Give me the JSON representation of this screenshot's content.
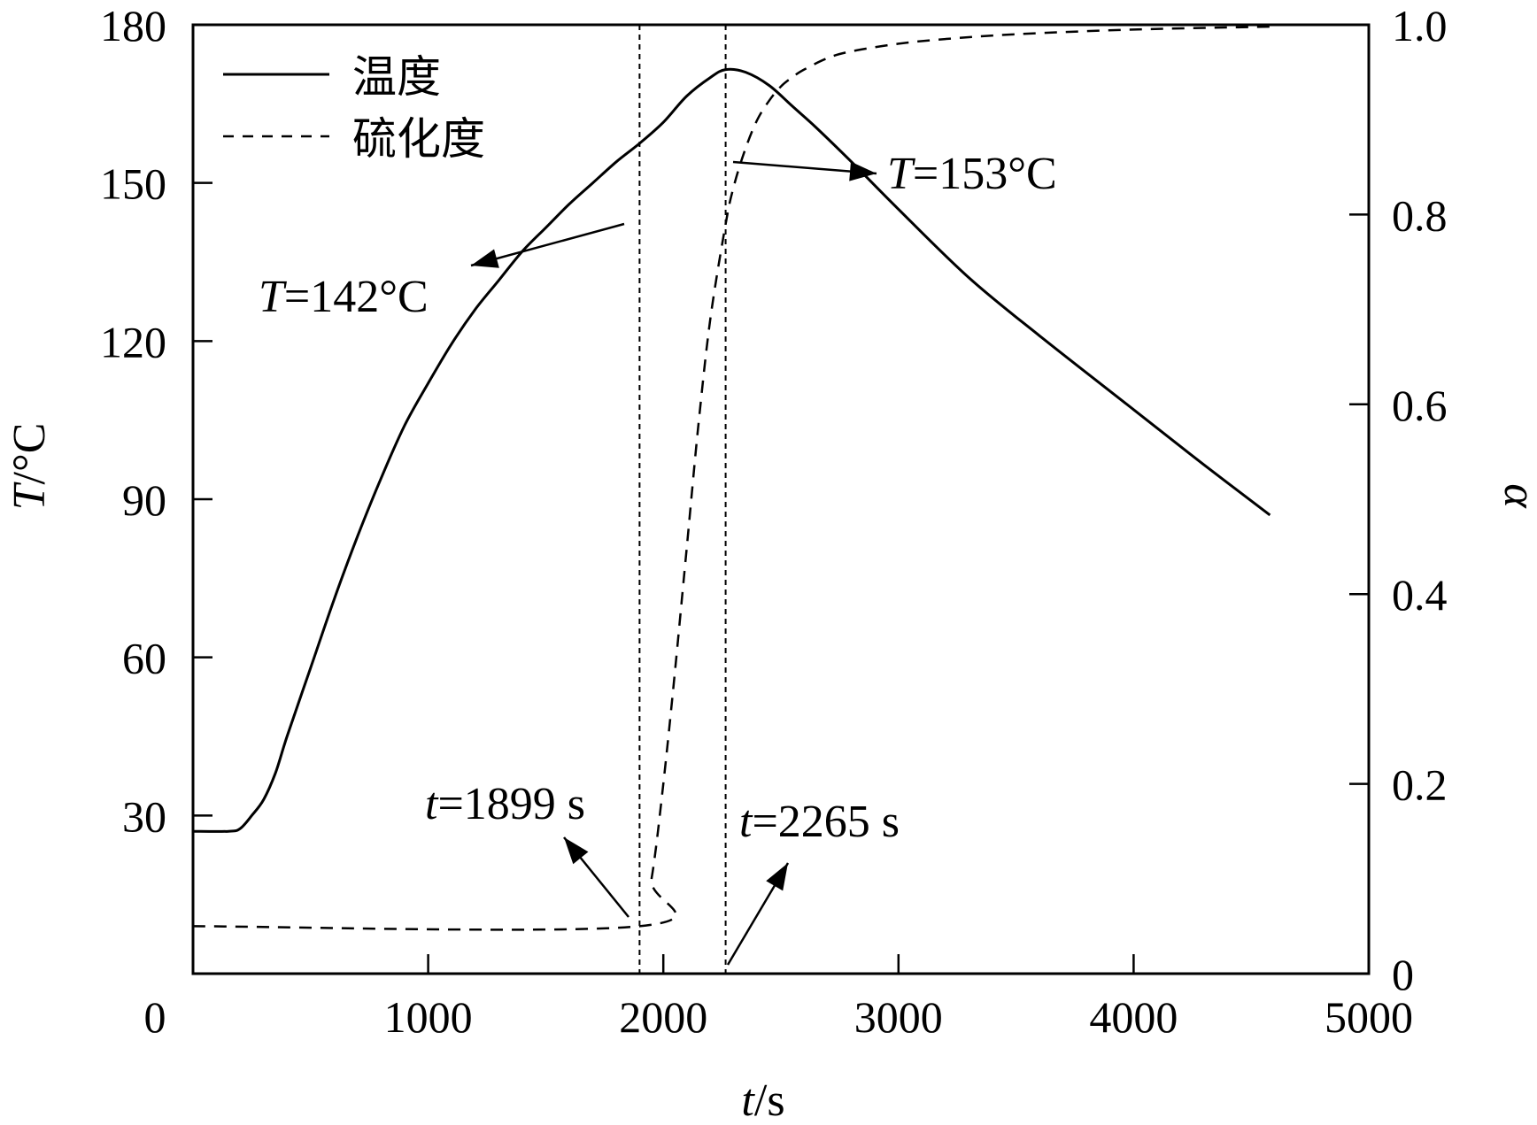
{
  "chart_data": {
    "type": "line",
    "xlabel": {
      "var": "t",
      "unit": "/s"
    },
    "ylabel_left": {
      "var": "T",
      "unit": "/°C"
    },
    "ylabel_right": {
      "var": "α"
    },
    "xlim": [
      0,
      5000
    ],
    "ylim_left": [
      0,
      180
    ],
    "ylim_right": [
      0,
      1.0
    ],
    "x_ticks": [
      0,
      1000,
      2000,
      3000,
      4000,
      5000
    ],
    "y_ticks_left": [
      0,
      30,
      60,
      90,
      120,
      150,
      180
    ],
    "y_ticks_right": [
      "0",
      "0.2",
      "0.4",
      "0.6",
      "0.8",
      "1.0"
    ],
    "y_ticks_right_values": [
      0,
      0.2,
      0.4,
      0.6,
      0.8,
      1.0
    ],
    "grid": false,
    "legend_position": "top-left",
    "series": [
      {
        "name": "温度",
        "axis": "left",
        "style": "solid",
        "x": [
          0,
          150,
          200,
          250,
          300,
          350,
          400,
          500,
          600,
          700,
          800,
          900,
          1000,
          1100,
          1200,
          1300,
          1400,
          1500,
          1600,
          1700,
          1800,
          1899,
          2000,
          2100,
          2200,
          2265,
          2350,
          2450,
          2550,
          2650,
          2800,
          3000,
          3300,
          3600,
          4000,
          4300,
          4580
        ],
        "y": [
          27,
          27,
          27.5,
          30,
          33,
          38,
          45,
          58,
          71,
          83,
          94,
          104,
          112,
          119.5,
          126,
          131.5,
          137,
          141.5,
          146,
          150,
          154,
          157.5,
          161.5,
          166.5,
          170,
          171.5,
          171,
          168.5,
          164.5,
          160.5,
          154,
          145,
          132,
          121,
          107,
          96.5,
          87
        ],
        "y_note": "values read in left-axis units at plot scale"
      },
      {
        "name": "硫化度",
        "axis": "right",
        "style": "dashed",
        "x": [
          0,
          1899,
          1950,
          2000,
          2050,
          2100,
          2150,
          2200,
          2265,
          2300,
          2350,
          2400,
          2450,
          2500,
          2550,
          2600,
          2700,
          2800,
          3000,
          3200,
          3500,
          4000,
          4580
        ],
        "y": [
          0.05,
          0.05,
          0.1,
          0.2,
          0.32,
          0.45,
          0.58,
          0.69,
          0.79,
          0.83,
          0.87,
          0.9,
          0.92,
          0.935,
          0.945,
          0.953,
          0.965,
          0.972,
          0.98,
          0.985,
          0.99,
          0.995,
          0.998
        ]
      }
    ],
    "vlines": [
      1899,
      2265
    ],
    "annotations": [
      {
        "id": "t1899",
        "text_var": "t",
        "text_rest": "=1899 s"
      },
      {
        "id": "t2265",
        "text_var": "t",
        "text_rest": "=2265 s"
      },
      {
        "id": "T142",
        "text_var": "T",
        "text_rest": "=142°C"
      },
      {
        "id": "T153",
        "text_var": "T",
        "text_rest": "=153°C"
      }
    ]
  }
}
